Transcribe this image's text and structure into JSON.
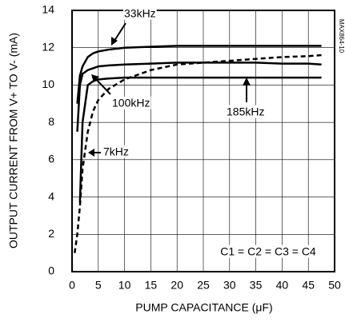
{
  "chart_data": {
    "type": "line",
    "xlabel": "PUMP CAPACITANCE (μF)",
    "ylabel": "OUTPUT CURRENT FROM V+ TO V- (mA)",
    "side_label": "MAX864-10",
    "x": [
      0.5,
      1,
      1.5,
      2,
      3,
      4,
      5,
      7,
      10,
      15,
      20,
      25,
      30,
      35,
      40,
      45,
      47.5
    ],
    "series": [
      {
        "name": "33kHz",
        "color": "#000000",
        "dash": false,
        "values": [
          null,
          9,
          10.5,
          11,
          11.5,
          11.7,
          11.8,
          11.9,
          12,
          12.05,
          12.1,
          12.1,
          12.1,
          12.1,
          12.1,
          12.1,
          12.1
        ]
      },
      {
        "name": "100kHz",
        "color": "#000000",
        "dash": false,
        "values": [
          null,
          7.5,
          10,
          10.6,
          10.8,
          10.9,
          11,
          11.05,
          11.1,
          11.15,
          11.2,
          11.2,
          11.2,
          11.2,
          11.15,
          11.15,
          11.1
        ]
      },
      {
        "name": "185kHz",
        "color": "#000000",
        "dash": false,
        "values": [
          null,
          null,
          3.7,
          8,
          10,
          10.2,
          10.3,
          10.35,
          10.4,
          10.4,
          10.4,
          10.4,
          10.4,
          10.4,
          10.4,
          10.4,
          10.4
        ]
      },
      {
        "name": "7kHz",
        "color": "#000000",
        "dash": true,
        "values": [
          1,
          2,
          3.5,
          5.5,
          7.5,
          8.6,
          9.2,
          9.8,
          10.3,
          10.8,
          11.1,
          11.2,
          11.3,
          11.4,
          11.5,
          11.55,
          11.6
        ]
      }
    ],
    "annotations": [
      "C1 = C2 = C3 = C4"
    ],
    "xlim": [
      0,
      50
    ],
    "xticks": [
      0,
      5,
      10,
      15,
      20,
      25,
      30,
      35,
      40,
      45,
      50
    ],
    "ylim": [
      0,
      14
    ],
    "yticks": [
      0,
      2,
      4,
      6,
      8,
      10,
      12,
      14
    ],
    "grid": true
  }
}
